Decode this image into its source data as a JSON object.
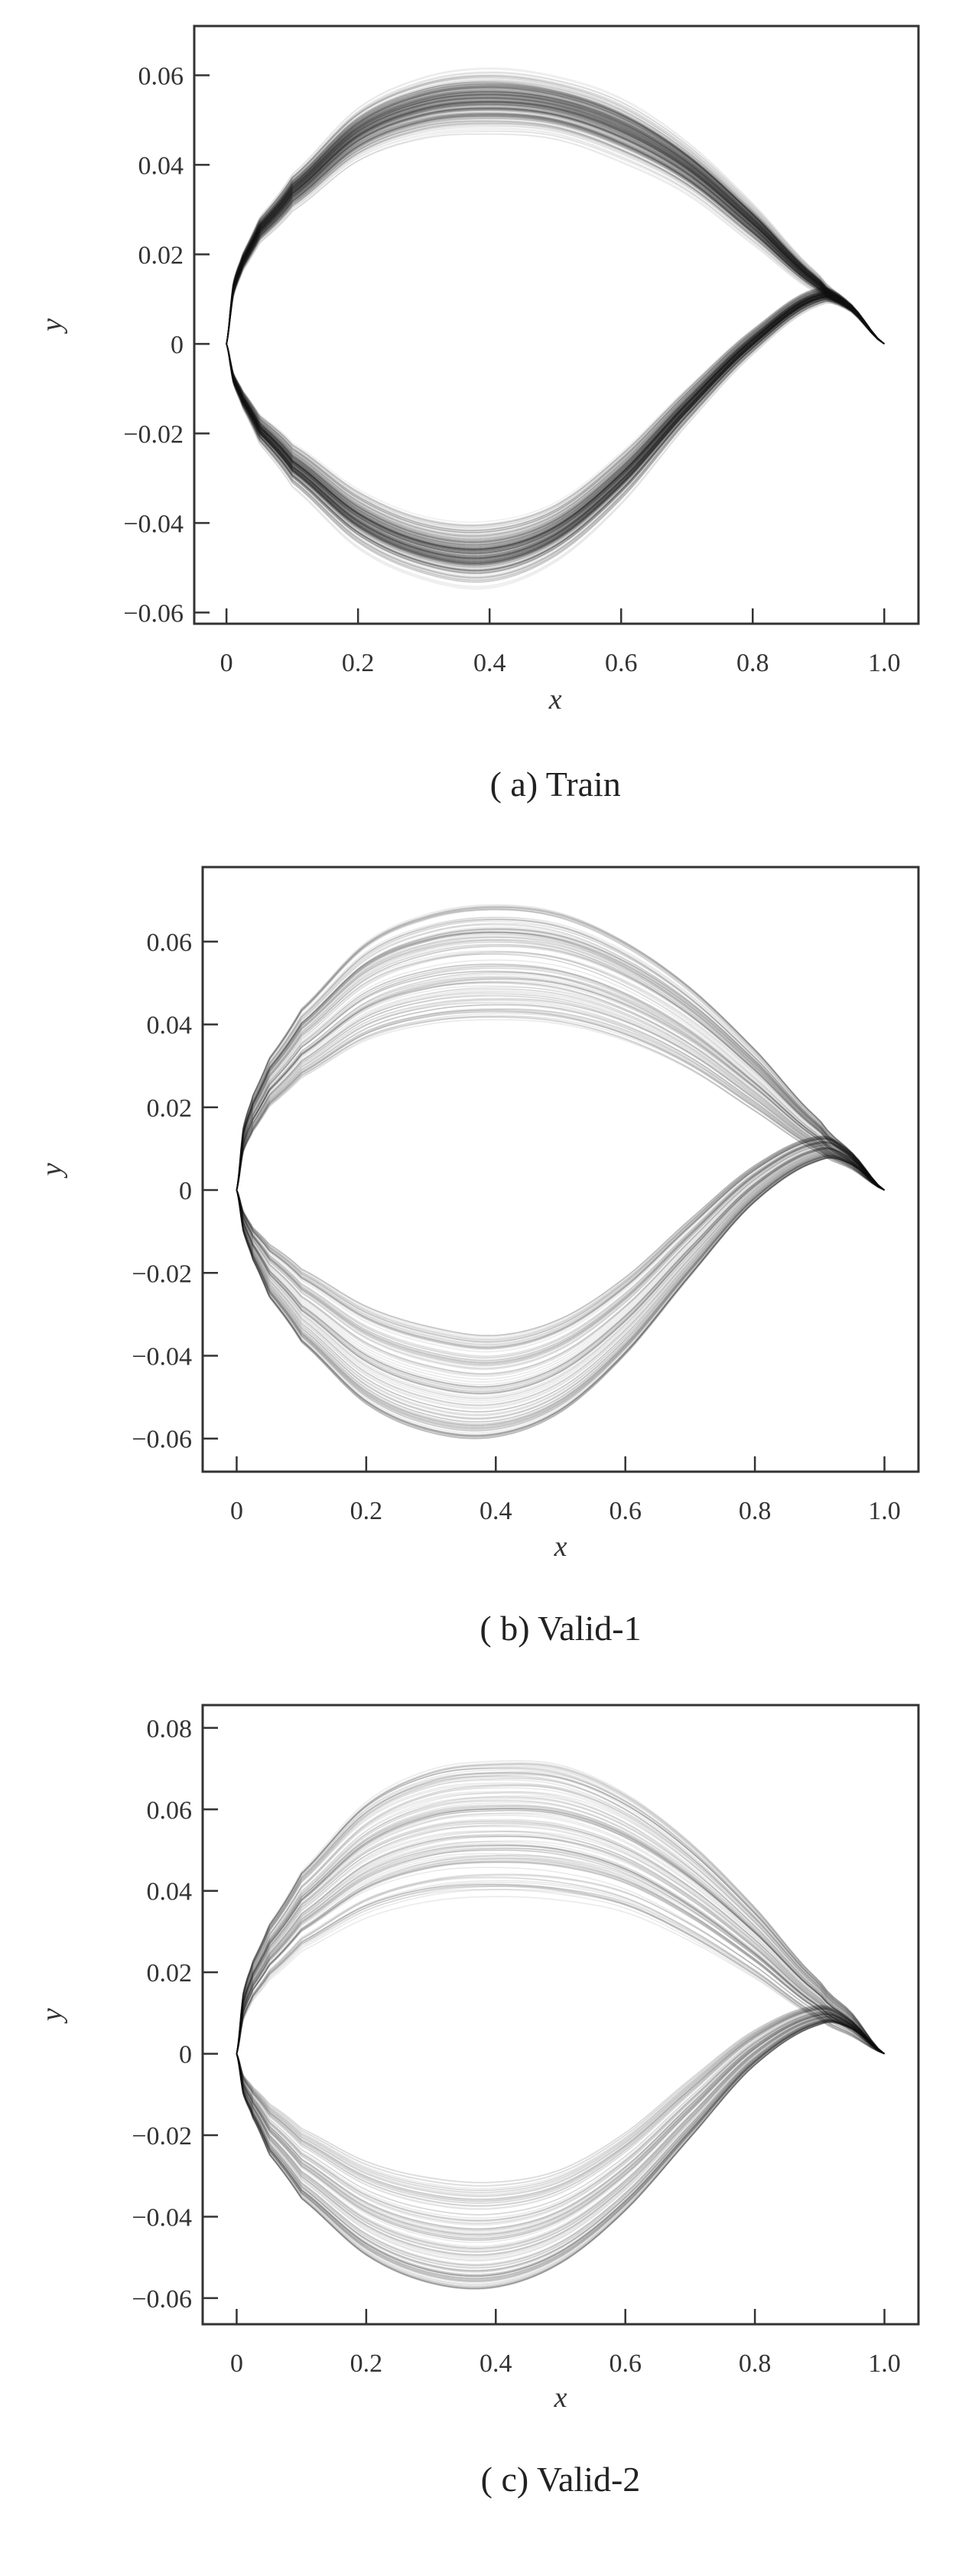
{
  "chart_data": [
    {
      "type": "line",
      "caption": "( a)  Train",
      "xlabel": "x",
      "ylabel": "y",
      "xlim": [
        -0.049,
        1.052
      ],
      "ylim": [
        -0.0625,
        0.071
      ],
      "xticks": [
        0,
        0.2,
        0.4,
        0.6,
        0.8,
        1.0
      ],
      "xtick_labels": [
        "0",
        "0.2",
        "0.4",
        "0.6",
        "0.8",
        "1.0"
      ],
      "yticks": [
        0.06,
        0.04,
        0.02,
        0,
        -0.02,
        -0.04,
        -0.06
      ],
      "ytick_labels": [
        "0.06",
        "0.04",
        "0.02",
        "0",
        "−0.02",
        "−0.04",
        "−0.06"
      ],
      "grid": false,
      "line_color": "#1a1a1a",
      "curve_count": 300,
      "envelope": {
        "x": [
          0,
          0.01,
          0.025,
          0.05,
          0.1,
          0.2,
          0.3,
          0.4,
          0.5,
          0.6,
          0.7,
          0.8,
          0.9,
          0.95,
          1.0
        ],
        "upper_min": [
          0,
          0.01,
          0.016,
          0.022,
          0.029,
          0.04,
          0.045,
          0.046,
          0.045,
          0.04,
          0.033,
          0.022,
          0.011,
          0.007,
          0
        ],
        "upper_max": [
          0,
          0.014,
          0.021,
          0.029,
          0.039,
          0.054,
          0.061,
          0.063,
          0.061,
          0.056,
          0.046,
          0.032,
          0.016,
          0.009,
          0
        ],
        "lower_min": [
          0,
          -0.006,
          -0.01,
          -0.015,
          -0.021,
          -0.031,
          -0.037,
          -0.038,
          -0.034,
          -0.023,
          -0.009,
          0.004,
          0.013,
          0.009,
          0
        ],
        "lower_max": [
          0,
          -0.009,
          -0.015,
          -0.023,
          -0.033,
          -0.047,
          -0.054,
          -0.056,
          -0.05,
          -0.037,
          -0.019,
          -0.003,
          0.008,
          0.007,
          0
        ]
      }
    },
    {
      "type": "line",
      "caption": "( b)  Valid-1",
      "xlabel": "x",
      "ylabel": "y",
      "xlim": [
        -0.0525,
        1.0525
      ],
      "ylim": [
        -0.068,
        0.078
      ],
      "xticks": [
        0,
        0.2,
        0.4,
        0.6,
        0.8,
        1.0
      ],
      "xtick_labels": [
        "0",
        "0.2",
        "0.4",
        "0.6",
        "0.8",
        "1.0"
      ],
      "yticks": [
        0.06,
        0.04,
        0.02,
        0,
        -0.02,
        -0.04,
        -0.06
      ],
      "ytick_labels": [
        "0.06",
        "0.04",
        "0.02",
        "0",
        "−0.02",
        "−0.04",
        "−0.06"
      ],
      "grid": false,
      "line_color": "#1a1a1a",
      "curve_count": 120,
      "envelope": {
        "x": [
          0,
          0.01,
          0.025,
          0.05,
          0.1,
          0.2,
          0.3,
          0.4,
          0.5,
          0.6,
          0.7,
          0.8,
          0.9,
          0.95,
          1.0
        ],
        "upper_min": [
          0,
          0.009,
          0.014,
          0.02,
          0.027,
          0.036,
          0.04,
          0.041,
          0.04,
          0.036,
          0.029,
          0.019,
          0.009,
          0.005,
          0
        ],
        "upper_max": [
          0,
          0.015,
          0.023,
          0.032,
          0.044,
          0.06,
          0.067,
          0.069,
          0.067,
          0.06,
          0.049,
          0.034,
          0.017,
          0.009,
          0
        ],
        "lower_min": [
          0,
          -0.005,
          -0.009,
          -0.013,
          -0.019,
          -0.028,
          -0.033,
          -0.035,
          -0.031,
          -0.021,
          -0.007,
          0.006,
          0.013,
          0.009,
          0
        ],
        "lower_max": [
          0,
          -0.01,
          -0.017,
          -0.026,
          -0.037,
          -0.052,
          -0.059,
          -0.06,
          -0.054,
          -0.04,
          -0.021,
          -0.003,
          0.007,
          0.006,
          0
        ]
      }
    },
    {
      "type": "line",
      "caption": "( c)  Valid-2",
      "xlabel": "x",
      "ylabel": "y",
      "xlim": [
        -0.0525,
        1.0525
      ],
      "ylim": [
        -0.0664,
        0.0856
      ],
      "xticks": [
        0,
        0.2,
        0.4,
        0.6,
        0.8,
        1.0
      ],
      "xtick_labels": [
        "0",
        "0.2",
        "0.4",
        "0.6",
        "0.8",
        "1.0"
      ],
      "yticks": [
        0.08,
        0.06,
        0.04,
        0.02,
        0,
        -0.02,
        -0.04,
        -0.06
      ],
      "ytick_labels": [
        "0.08",
        "0.06",
        "0.04",
        "0.02",
        "0",
        "−0.02",
        "−0.04",
        "−0.06"
      ],
      "grid": false,
      "line_color": "#1a1a1a",
      "curve_count": 120,
      "envelope": {
        "x": [
          0,
          0.01,
          0.025,
          0.05,
          0.1,
          0.2,
          0.3,
          0.4,
          0.5,
          0.6,
          0.7,
          0.8,
          0.9,
          0.95,
          1.0
        ],
        "upper_min": [
          0,
          0.008,
          0.013,
          0.018,
          0.025,
          0.033,
          0.037,
          0.038,
          0.037,
          0.034,
          0.027,
          0.018,
          0.008,
          0.004,
          0
        ],
        "upper_max": [
          0,
          0.015,
          0.023,
          0.032,
          0.045,
          0.062,
          0.07,
          0.072,
          0.071,
          0.064,
          0.052,
          0.036,
          0.018,
          0.01,
          0
        ],
        "lower_min": [
          0,
          -0.005,
          -0.008,
          -0.012,
          -0.018,
          -0.026,
          -0.03,
          -0.031,
          -0.028,
          -0.019,
          -0.006,
          0.006,
          0.012,
          0.008,
          0
        ],
        "lower_max": [
          0,
          -0.01,
          -0.016,
          -0.025,
          -0.036,
          -0.05,
          -0.057,
          -0.058,
          -0.052,
          -0.039,
          -0.021,
          -0.003,
          0.007,
          0.006,
          0
        ]
      }
    }
  ]
}
